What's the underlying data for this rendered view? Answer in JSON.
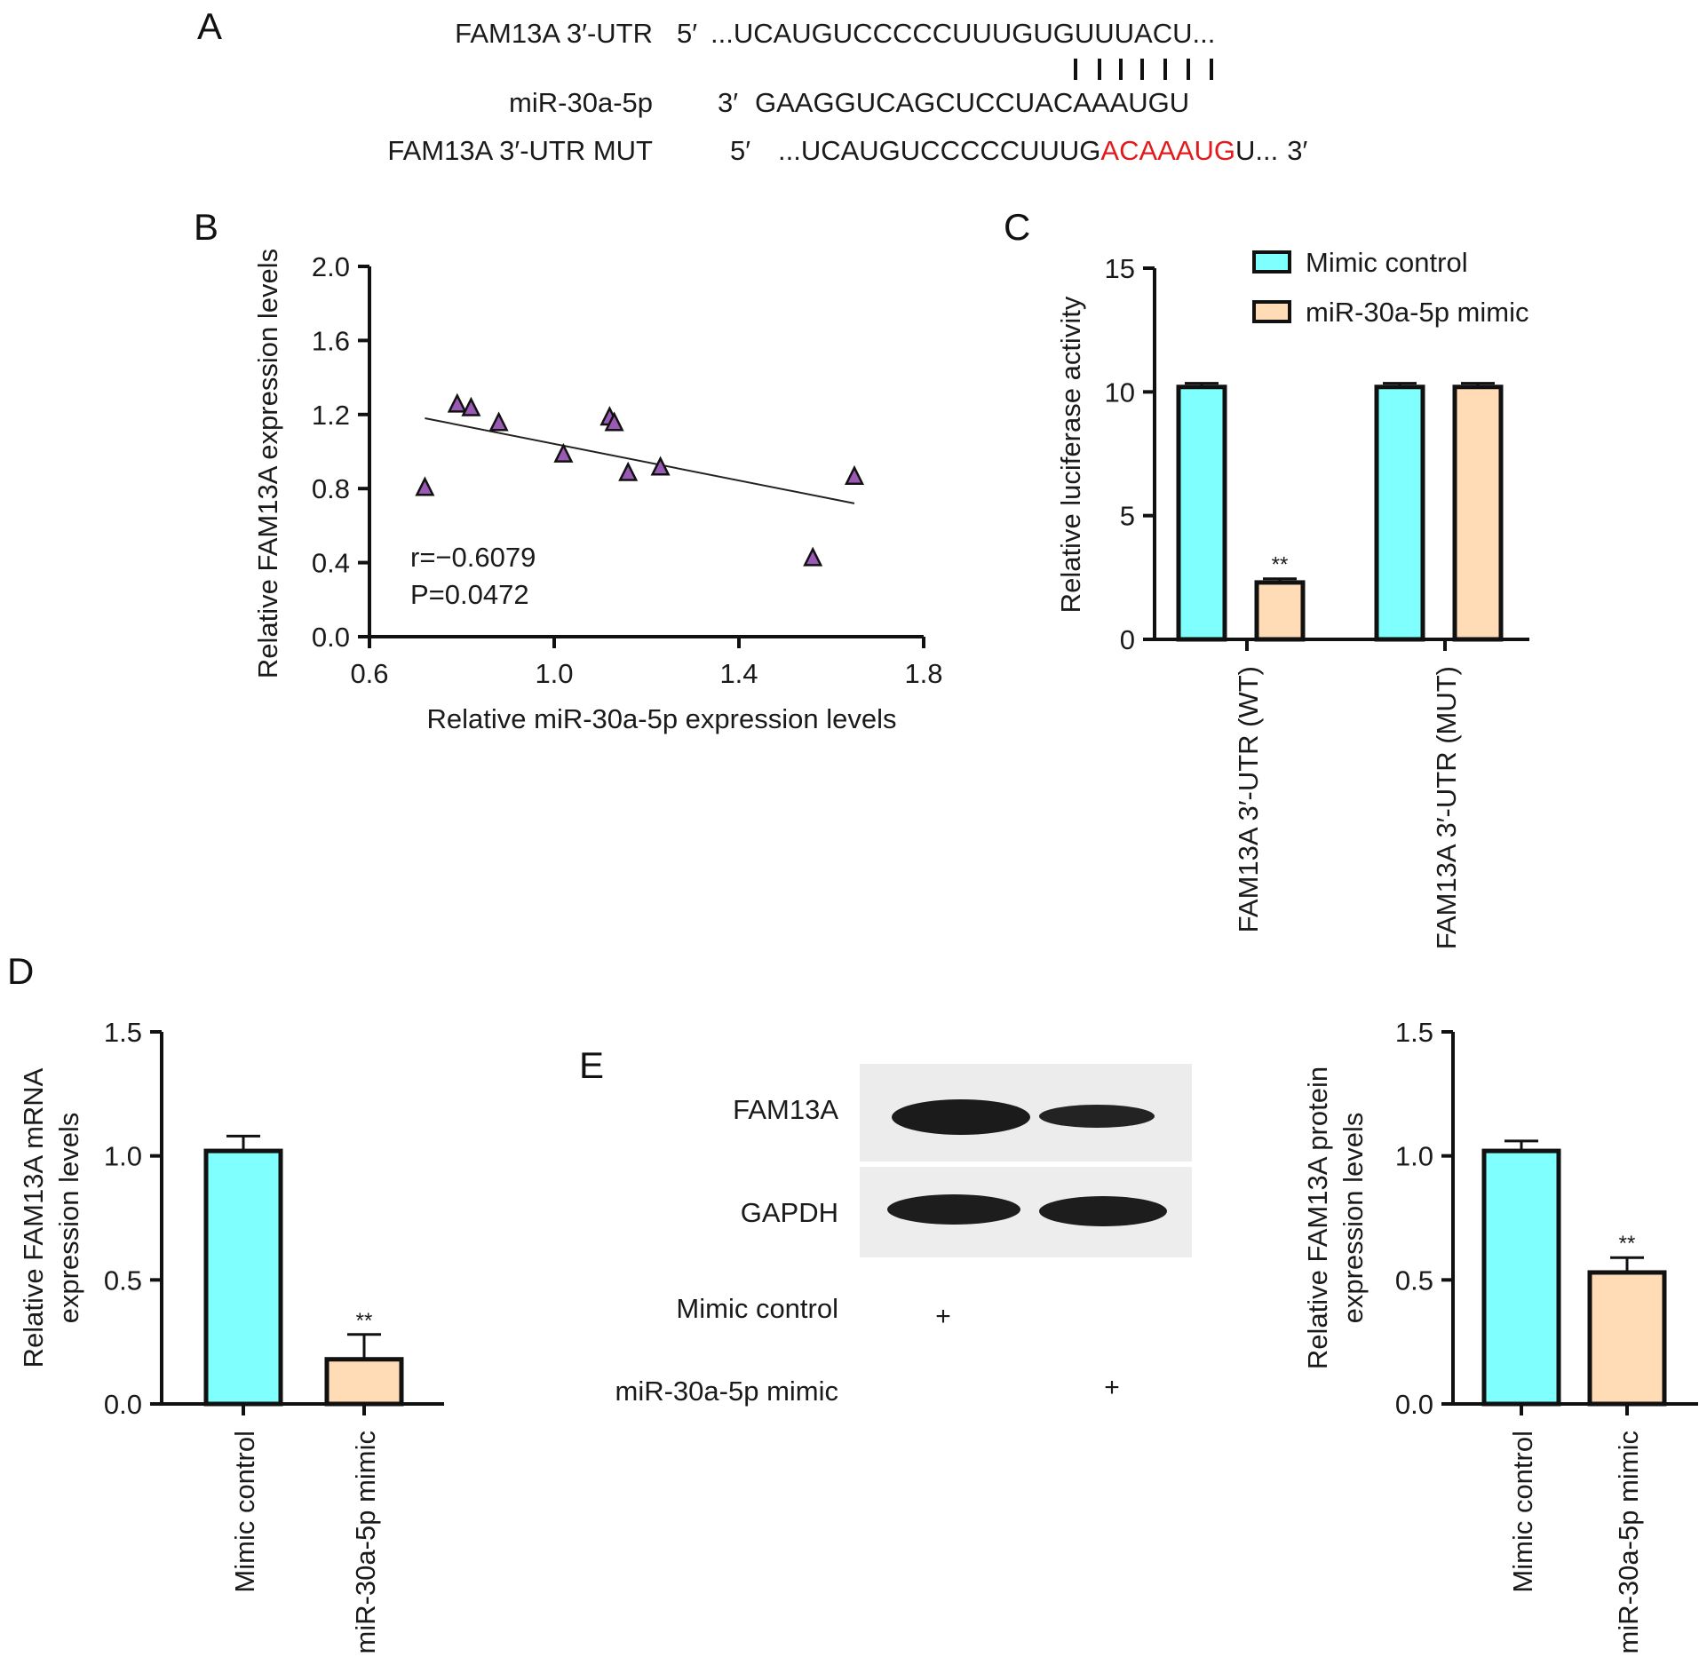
{
  "panels": [
    "A",
    "B",
    "C",
    "D",
    "E"
  ],
  "seq": {
    "wt_label": "FAM13A 3′-UTR",
    "wt_dir": "5′",
    "wt_seq": "...UCAUGUCCCCCUUUGUGUUUACU...",
    "mir_label": "miR-30a-5p",
    "mir_dir": "3′",
    "mir_seq": "GAAGGUCAGCUCCUACAAAUGU",
    "mut_label": "FAM13A 3′-UTR MUT",
    "mut_dir": "5′",
    "mut_pre": "...UCAUGUCCCCCUUUG",
    "mut_red": "ACAAAUG",
    "mut_post": "U...",
    "mut_end": "3′"
  },
  "colors": {
    "mimic_control": "#80ffff",
    "mir_mimic": "#ffdbb6",
    "triangle": "#9b59b6",
    "mut_text": "#e31a1c"
  },
  "chart_data": [
    {
      "panel": "B",
      "type": "scatter",
      "xlabel": "Relative miR-30a-5p expression levels",
      "ylabel": "Relative FAM13A expression levels",
      "xlim": [
        0.6,
        1.8
      ],
      "ylim": [
        0.0,
        2.0
      ],
      "xticks": [
        "0.6",
        "1.0",
        "1.4",
        "1.8"
      ],
      "yticks": [
        "0.0",
        "0.4",
        "0.8",
        "1.2",
        "1.6",
        "2.0"
      ],
      "x": [
        0.72,
        0.79,
        0.82,
        0.88,
        1.02,
        1.12,
        1.13,
        1.16,
        1.23,
        1.56,
        1.65
      ],
      "y": [
        0.8,
        1.25,
        1.23,
        1.15,
        0.98,
        1.18,
        1.15,
        0.88,
        0.91,
        0.42,
        0.86
      ],
      "fit": [
        [
          0.72,
          1.18
        ],
        [
          1.65,
          0.72
        ]
      ],
      "stat_r": "r=−0.6079",
      "stat_p": "P=0.0472"
    },
    {
      "panel": "C",
      "type": "bar",
      "ylabel": "Relative luciferase activity",
      "ylim": [
        0,
        15
      ],
      "yticks": [
        "0",
        "5",
        "10",
        "15"
      ],
      "categories": [
        "FAM13A 3′-UTR (WT)",
        "FAM13A 3′-UTR (MUT)"
      ],
      "series": [
        {
          "name": "Mimic control",
          "values": [
            10.2,
            10.2
          ],
          "errors": [
            0.15,
            0.15
          ]
        },
        {
          "name": "miR-30a-5p mimic",
          "values": [
            2.3,
            10.2
          ],
          "errors": [
            0.15,
            0.15
          ]
        }
      ],
      "significance": [
        "",
        "**"
      ],
      "legend": "top-right"
    },
    {
      "panel": "D",
      "type": "bar",
      "ylabel_line1": "Relative FAM13A mRNA",
      "ylabel_line2": "expression levels",
      "ylim": [
        0,
        1.5
      ],
      "yticks": [
        "0.0",
        "0.5",
        "1.0",
        "1.5"
      ],
      "categories": [
        "Mimic control",
        "miR-30a-5p mimic"
      ],
      "values": [
        1.02,
        0.18
      ],
      "errors": [
        0.06,
        0.1
      ],
      "significance": [
        "",
        "**"
      ]
    },
    {
      "panel": "E",
      "type": "bar",
      "ylabel_line1": "Relative FAM13A protein",
      "ylabel_line2": "expression levels",
      "ylim": [
        0,
        1.5
      ],
      "yticks": [
        "0.0",
        "0.5",
        "1.0",
        "1.5"
      ],
      "categories": [
        "Mimic control",
        "miR-30a-5p mimic"
      ],
      "values": [
        1.02,
        0.53
      ],
      "errors": [
        0.04,
        0.06
      ],
      "significance": [
        "",
        "**"
      ]
    }
  ],
  "blot": {
    "bands": [
      "FAM13A",
      "GAPDH"
    ],
    "rows": [
      "Mimic control",
      "miR-30a-5p mimic"
    ],
    "plus": "+"
  }
}
